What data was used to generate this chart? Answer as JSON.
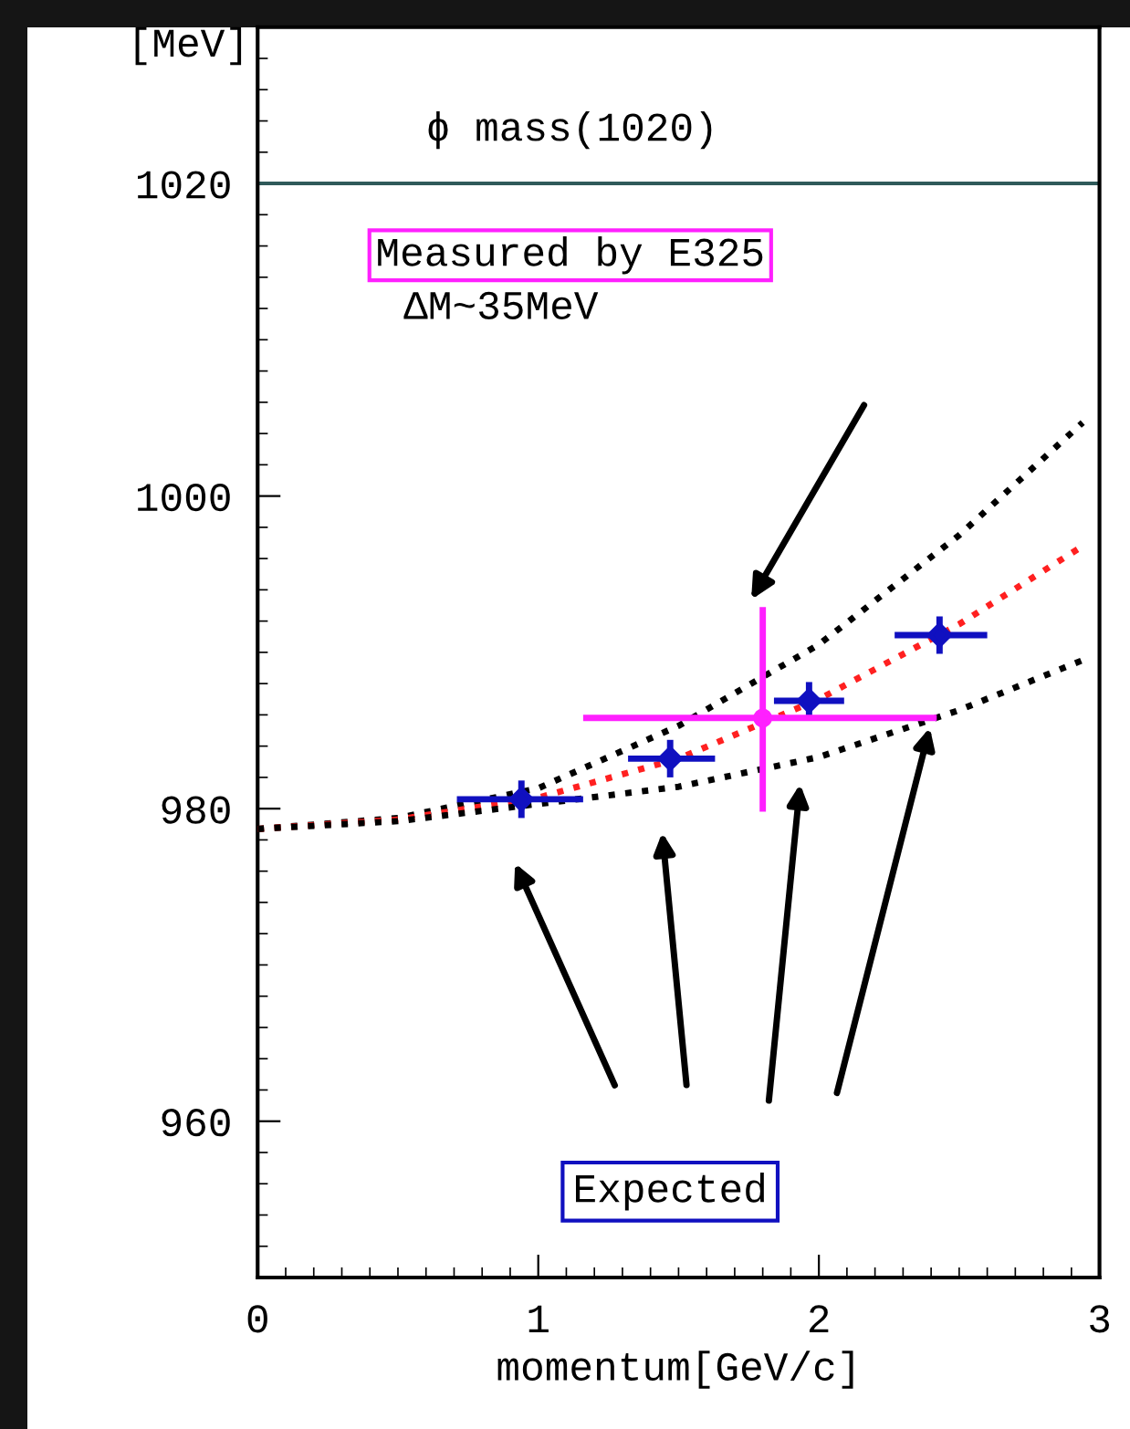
{
  "chart_data": {
    "type": "line",
    "xlabel": "momentum[GeV/c]",
    "ylabel": "[MeV]",
    "xlim": [
      0,
      3
    ],
    "ylim": [
      950,
      1030
    ],
    "xticks": [
      0,
      1,
      2,
      3
    ],
    "yticks": [
      960,
      980,
      1000,
      1020
    ],
    "grid": false,
    "ref_lines": [
      {
        "axis": "y",
        "value": 1020,
        "label": "ϕ mass(1020)",
        "color": "#2f5a5a"
      }
    ],
    "series": [
      {
        "color": "#000000",
        "line_style": "dotted",
        "marker": "none",
        "x": [
          0,
          0.5,
          1.0,
          1.5,
          2.0,
          2.5,
          2.94
        ],
        "values": [
          978.7,
          979.4,
          981.3,
          985.3,
          990.5,
          997.5,
          1004.7
        ]
      },
      {
        "color": "#ff2020",
        "line_style": "dotted",
        "marker": "none",
        "x": [
          0,
          0.5,
          1.0,
          1.5,
          2.0,
          2.5,
          2.94
        ],
        "values": [
          978.7,
          979.3,
          980.7,
          983.2,
          987.0,
          991.8,
          996.8
        ]
      },
      {
        "color": "#000000",
        "line_style": "dotted",
        "marker": "none",
        "x": [
          0,
          0.5,
          1.0,
          1.5,
          2.0,
          2.5,
          2.94
        ],
        "values": [
          978.7,
          979.2,
          980.3,
          981.4,
          983.3,
          986.3,
          989.5
        ]
      },
      {
        "type": "scatter",
        "color": "#1010c0",
        "marker": "diamond",
        "x": [
          0.94,
          1.47,
          1.965,
          2.43
        ],
        "values": [
          980.6,
          983.2,
          986.9,
          991.1
        ],
        "errors": [
          1.2,
          1.2,
          1.2,
          1.2
        ],
        "xerrors": [
          [
            0.71,
            1.16
          ],
          [
            1.32,
            1.63
          ],
          [
            1.84,
            2.09
          ],
          [
            2.27,
            2.6
          ]
        ]
      },
      {
        "type": "scatter",
        "color": "#ff20ff",
        "marker": "circle",
        "x": [
          1.8
        ],
        "values": [
          985.8
        ],
        "errors": [
          [
            979.8,
            992.9
          ]
        ],
        "xerrors": [
          [
            1.16,
            2.42
          ]
        ]
      }
    ],
    "annotations": [
      "Measured by E325",
      "ΔM~35MeV",
      "Expected"
    ]
  }
}
